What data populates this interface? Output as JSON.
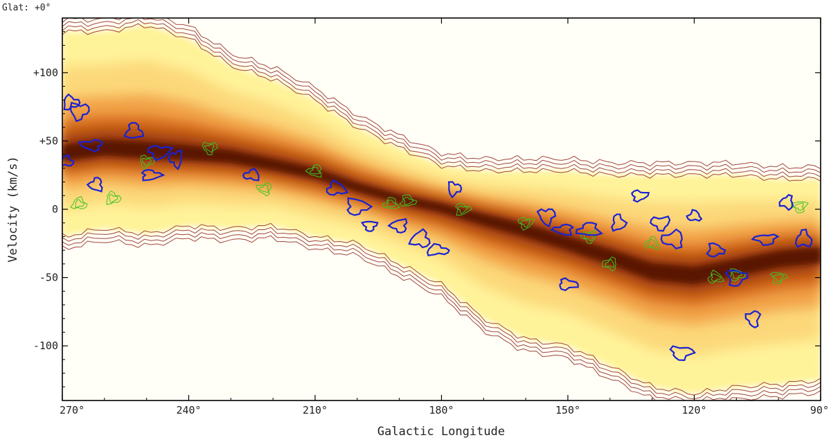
{
  "chart_data": {
    "type": "heatmap",
    "header": "Glat: +0°",
    "xlabel": "Galactic Longitude",
    "ylabel": "Velocity (km/s)",
    "xlim": [
      270,
      90
    ],
    "ylim": [
      -140,
      140
    ],
    "x_reversed": true,
    "grid": false,
    "x_ticks": [
      {
        "value": 270,
        "label": "270°"
      },
      {
        "value": 240,
        "label": "240°"
      },
      {
        "value": 210,
        "label": "210°"
      },
      {
        "value": 180,
        "label": "180°"
      },
      {
        "value": 150,
        "label": "150°"
      },
      {
        "value": 120,
        "label": "120°"
      },
      {
        "value": 90,
        "label": "90°"
      }
    ],
    "y_ticks": [
      {
        "value": 100,
        "label": "+100"
      },
      {
        "value": 50,
        "label": "+50"
      },
      {
        "value": 0,
        "label": "0"
      },
      {
        "value": -50,
        "label": "-50"
      },
      {
        "value": -100,
        "label": "-100"
      }
    ],
    "colormap": [
      "#fffde0",
      "#fff39a",
      "#fcd87a",
      "#f2a348",
      "#d46a1e",
      "#9a3a0a",
      "#5a1502"
    ],
    "contour_colors": {
      "outer": "#a0463a",
      "blue": "#1a22d4",
      "green": "#3cc424"
    },
    "emission_ridge": {
      "x": [
        270,
        260,
        250,
        240,
        230,
        220,
        210,
        200,
        190,
        180,
        170,
        160,
        150,
        140,
        130,
        120,
        110,
        100,
        90
      ],
      "center_velocity": [
        40,
        44,
        42,
        40,
        38,
        32,
        26,
        16,
        8,
        2,
        -6,
        -14,
        -24,
        -34,
        -45,
        -48,
        -42,
        -35,
        -32
      ],
      "upper_edge_velocity": [
        130,
        130,
        135,
        125,
        105,
        95,
        80,
        60,
        45,
        32,
        28,
        28,
        28,
        25,
        25,
        25,
        25,
        22,
        22
      ],
      "lower_edge_velocity": [
        -20,
        -14,
        -18,
        -12,
        -14,
        -12,
        -20,
        -25,
        -40,
        -55,
        -80,
        -95,
        -100,
        -115,
        -130,
        -135,
        -130,
        -128,
        -125
      ]
    },
    "blue_clouds": [
      {
        "l": 269,
        "v": 35
      },
      {
        "l": 268,
        "v": 78
      },
      {
        "l": 266,
        "v": 72
      },
      {
        "l": 263,
        "v": 47
      },
      {
        "l": 262,
        "v": 18
      },
      {
        "l": 253,
        "v": 57
      },
      {
        "l": 249,
        "v": 25
      },
      {
        "l": 247,
        "v": 42
      },
      {
        "l": 243,
        "v": 37
      },
      {
        "l": 225,
        "v": 25
      },
      {
        "l": 205,
        "v": 15
      },
      {
        "l": 200,
        "v": 2
      },
      {
        "l": 197,
        "v": -12
      },
      {
        "l": 190,
        "v": -12
      },
      {
        "l": 185,
        "v": -22
      },
      {
        "l": 181,
        "v": -30
      },
      {
        "l": 177,
        "v": 15
      },
      {
        "l": 155,
        "v": -5
      },
      {
        "l": 151,
        "v": -15
      },
      {
        "l": 145,
        "v": -15
      },
      {
        "l": 138,
        "v": -10
      },
      {
        "l": 133,
        "v": 10
      },
      {
        "l": 128,
        "v": -10
      },
      {
        "l": 125,
        "v": -22
      },
      {
        "l": 120,
        "v": -5
      },
      {
        "l": 115,
        "v": -30
      },
      {
        "l": 110,
        "v": -50
      },
      {
        "l": 103,
        "v": -22
      },
      {
        "l": 98,
        "v": 5
      },
      {
        "l": 94,
        "v": -22
      },
      {
        "l": 150,
        "v": -55
      },
      {
        "l": 123,
        "v": -105
      },
      {
        "l": 106,
        "v": -80
      }
    ],
    "green_clouds": [
      {
        "l": 266,
        "v": 4
      },
      {
        "l": 258,
        "v": 8
      },
      {
        "l": 250,
        "v": 35
      },
      {
        "l": 235,
        "v": 45
      },
      {
        "l": 222,
        "v": 15
      },
      {
        "l": 210,
        "v": 28
      },
      {
        "l": 192,
        "v": 4
      },
      {
        "l": 188,
        "v": 6
      },
      {
        "l": 175,
        "v": 0
      },
      {
        "l": 160,
        "v": -10
      },
      {
        "l": 145,
        "v": -20
      },
      {
        "l": 140,
        "v": -40
      },
      {
        "l": 130,
        "v": -25
      },
      {
        "l": 115,
        "v": -50
      },
      {
        "l": 110,
        "v": -48
      },
      {
        "l": 100,
        "v": -50
      },
      {
        "l": 95,
        "v": 2
      }
    ]
  }
}
